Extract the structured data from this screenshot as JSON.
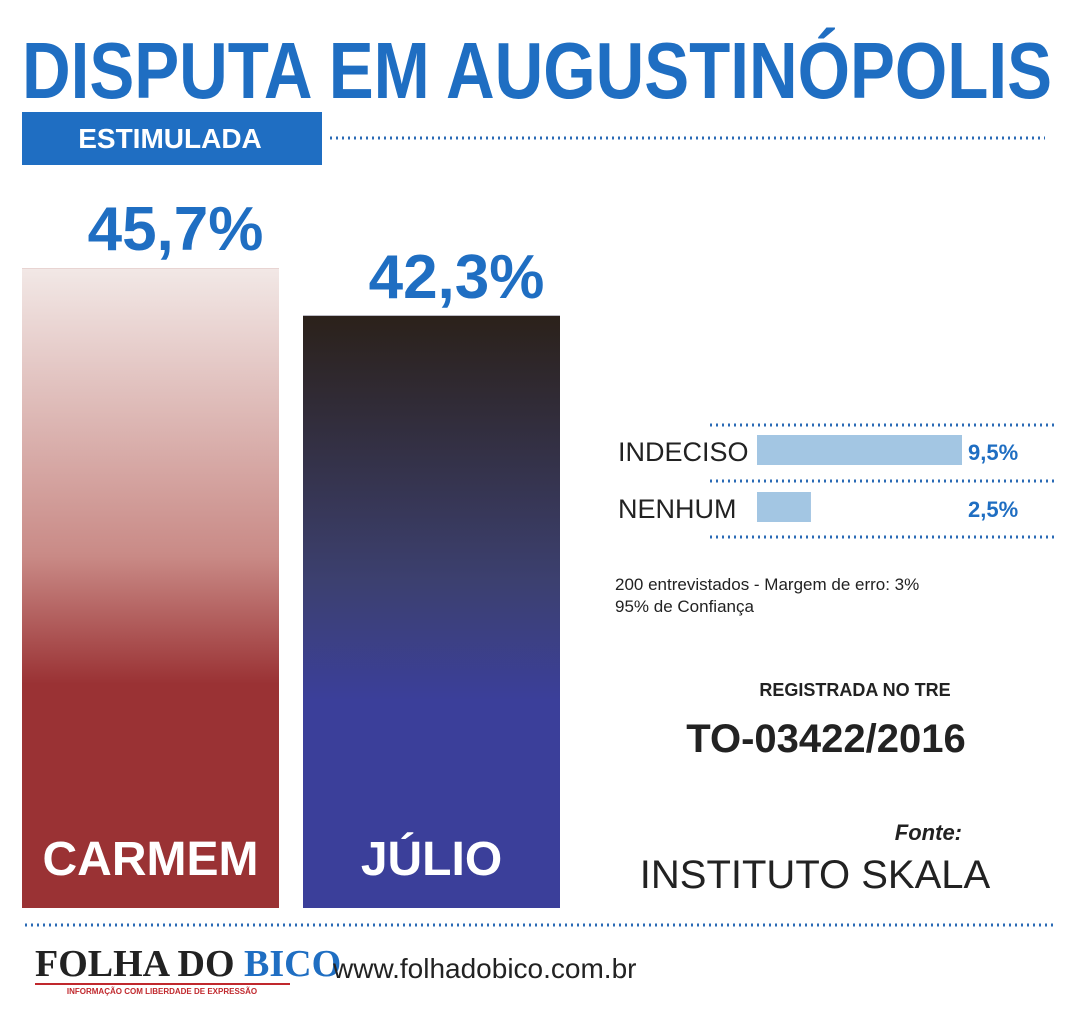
{
  "title": "DISPUTA EM AUGUSTINÓPOLIS",
  "subtitle": "ESTIMULADA",
  "chart_data": [
    {
      "type": "bar",
      "categories": [
        "CARMEM",
        "JÚLIO"
      ],
      "values": [
        45.7,
        42.3
      ],
      "value_labels": [
        "45,7%",
        "42,3%"
      ],
      "colors": [
        "#9a3234",
        "#3b3f9a"
      ]
    },
    {
      "type": "hbar",
      "categories": [
        "INDECISO",
        "NENHUM"
      ],
      "values": [
        9.5,
        2.5
      ],
      "value_labels": [
        "9,5%",
        "2,5%"
      ],
      "color": "#a3c6e3"
    }
  ],
  "notes": [
    "200 entrevistados - Margem de erro: 3%",
    "95% de Confiança"
  ],
  "registration": {
    "label": "REGISTRADA NO TRE",
    "number": "TO-03422/2016"
  },
  "source": {
    "label": "Fonte:",
    "name": "INSTITUTO SKALA"
  },
  "logo": {
    "text": "FOLHA DO",
    "highlight": "BICO",
    "tagline": "INFORMAÇÃO COM LIBERDADE DE EXPRESSÃO"
  },
  "url": "www.folhadobico.com.br"
}
